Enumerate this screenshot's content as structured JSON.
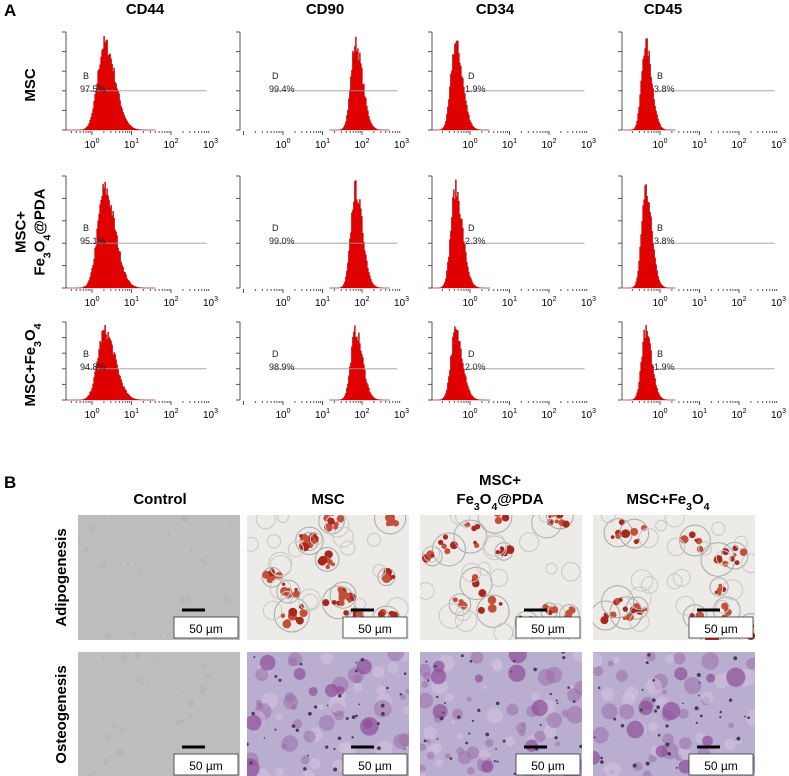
{
  "panel_a": {
    "label": "A",
    "columns": [
      "CD44",
      "CD90",
      "CD34",
      "CD45"
    ],
    "x_tick_labels": [
      {
        "base": "10",
        "exp": "0"
      },
      {
        "base": "10",
        "exp": "1"
      },
      {
        "base": "10",
        "exp": "2"
      },
      {
        "base": "10",
        "exp": "3"
      }
    ],
    "rows": [
      {
        "label_lines": [
          [
            {
              "text": "MSC"
            }
          ]
        ],
        "cells": [
          {
            "gate": "B",
            "percent": "97.5%"
          },
          {
            "gate": "D",
            "percent": "99.4%"
          },
          {
            "gate": "D",
            "percent": "1.9%"
          },
          {
            "gate": "B",
            "percent": "3.8%"
          }
        ]
      },
      {
        "label_lines": [
          [
            {
              "text": "MSC+"
            }
          ],
          [
            {
              "text": "Fe"
            },
            {
              "text": "3",
              "sub": true
            },
            {
              "text": "O"
            },
            {
              "text": "4",
              "sub": true
            },
            {
              "text": "@PDA"
            }
          ]
        ],
        "cells": [
          {
            "gate": "B",
            "percent": "95.1%"
          },
          {
            "gate": "D",
            "percent": "99.0%"
          },
          {
            "gate": "D",
            "percent": "2.3%"
          },
          {
            "gate": "B",
            "percent": "3.8%"
          }
        ]
      },
      {
        "label_lines": [
          [
            {
              "text": "MSC+Fe"
            },
            {
              "text": "3",
              "sub": true
            },
            {
              "text": "O"
            },
            {
              "text": "4",
              "sub": true
            }
          ]
        ],
        "cells": [
          {
            "gate": "B",
            "percent": "94.8%"
          },
          {
            "gate": "D",
            "percent": "98.9%"
          },
          {
            "gate": "D",
            "percent": "2.0%"
          },
          {
            "gate": "B",
            "percent": "1.9%"
          }
        ]
      }
    ]
  },
  "panel_b": {
    "label": "B",
    "columns": [
      [
        [
          {
            "text": "Control"
          }
        ]
      ],
      [
        [
          {
            "text": "MSC"
          }
        ]
      ],
      [
        [
          {
            "text": "MSC+"
          }
        ],
        [
          {
            "text": "Fe"
          },
          {
            "text": "3",
            "sub": true
          },
          {
            "text": "O"
          },
          {
            "text": "4",
            "sub": true
          },
          {
            "text": "@PDA"
          }
        ]
      ],
      [
        [
          {
            "text": "MSC+Fe"
          },
          {
            "text": "3",
            "sub": true
          },
          {
            "text": "O"
          },
          {
            "text": "4",
            "sub": true
          }
        ]
      ]
    ],
    "rows": [
      "Adipogenesis",
      "Osteogenesis"
    ],
    "scale_bar": "50 µm"
  }
}
